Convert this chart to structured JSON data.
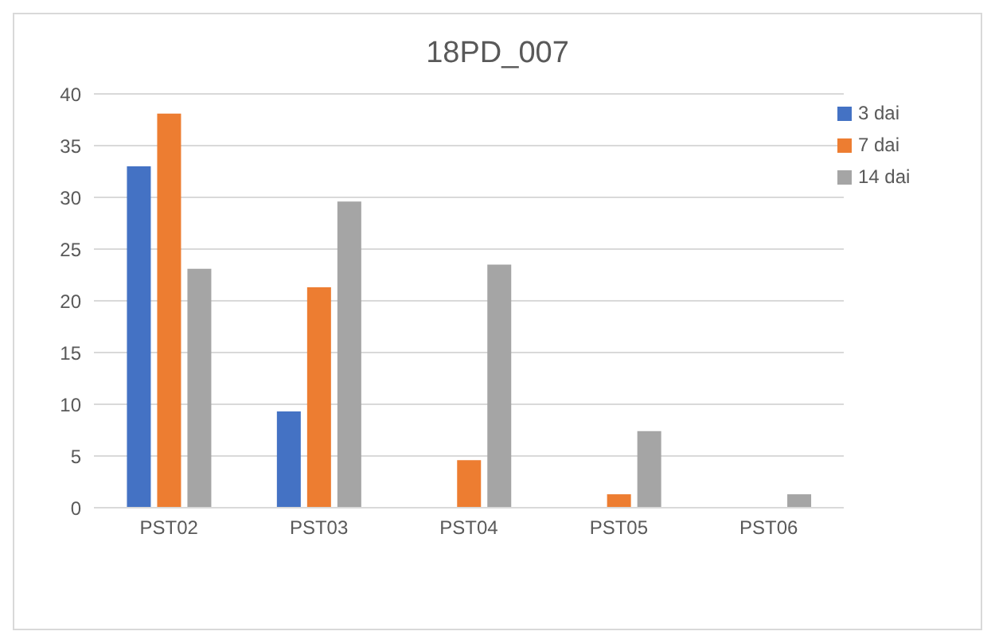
{
  "chart_data": {
    "type": "bar",
    "title": "18PD_007",
    "categories": [
      "PST02",
      "PST03",
      "PST04",
      "PST05",
      "PST06"
    ],
    "series": [
      {
        "name": "3 dai",
        "color": "#4472c4",
        "values": [
          33,
          9.3,
          0,
          0,
          0
        ]
      },
      {
        "name": "7 dai",
        "color": "#ed7d31",
        "values": [
          38.1,
          21.3,
          4.6,
          1.3,
          0
        ]
      },
      {
        "name": "14 dai",
        "color": "#a5a5a5",
        "values": [
          23.1,
          29.6,
          23.5,
          7.4,
          1.3
        ]
      }
    ],
    "ylim": [
      0,
      40
    ],
    "yticks": [
      0,
      5,
      10,
      15,
      20,
      25,
      30,
      35,
      40
    ],
    "grid": "y",
    "legend": "top right"
  }
}
